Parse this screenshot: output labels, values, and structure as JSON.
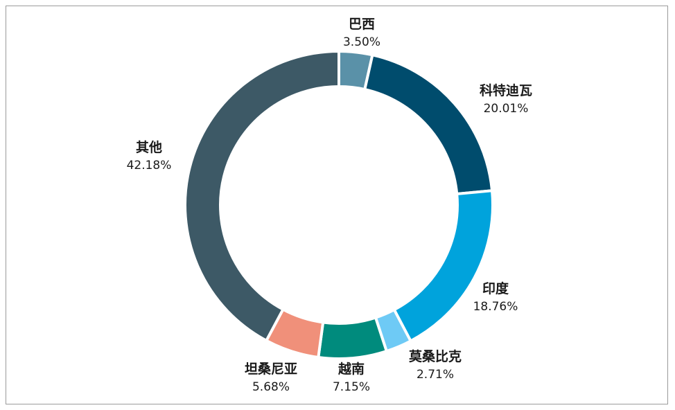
{
  "chart_data": {
    "type": "pie",
    "variant": "donut",
    "slices": [
      {
        "label": "巴西",
        "value": 3.5,
        "display": "3.50%",
        "color": "#5a91a8"
      },
      {
        "label": "科特迪瓦",
        "value": 20.01,
        "display": "20.01%",
        "color": "#004c6d"
      },
      {
        "label": "印度",
        "value": 18.76,
        "display": "18.76%",
        "color": "#00a3dc"
      },
      {
        "label": "莫桑比克",
        "value": 2.71,
        "display": "2.71%",
        "color": "#6ecaf5"
      },
      {
        "label": "越南",
        "value": 7.15,
        "display": "7.15%",
        "color": "#008b7d"
      },
      {
        "label": "坦桑尼亚",
        "value": 5.68,
        "display": "5.68%",
        "color": "#f0907a"
      },
      {
        "label": "其他",
        "value": 42.18,
        "display": "42.18%",
        "color": "#3d5966"
      }
    ],
    "legend": "none"
  }
}
